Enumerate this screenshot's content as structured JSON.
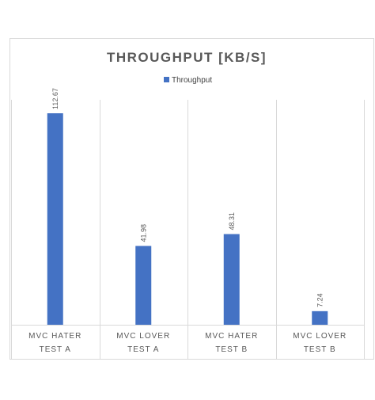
{
  "chart_data": {
    "type": "bar",
    "title": "THROUGHPUT [KB/S]",
    "categories": [
      [
        "MVC HATER",
        "TEST A"
      ],
      [
        "MVC LOVER",
        "TEST A"
      ],
      [
        "MVC HATER",
        "TEST B"
      ],
      [
        "MVC LOVER",
        "TEST B"
      ]
    ],
    "series": [
      {
        "name": "Throughput",
        "values": [
          112.67,
          41.98,
          48.31,
          7.24
        ],
        "color": "#4472C4"
      }
    ],
    "data_labels": [
      "112.67",
      "41.98",
      "48.31",
      "7.24"
    ],
    "ylim": [
      0,
      112.67
    ],
    "legend_position": "top",
    "grid": "vertical category separators",
    "xlabel": "",
    "ylabel": ""
  }
}
